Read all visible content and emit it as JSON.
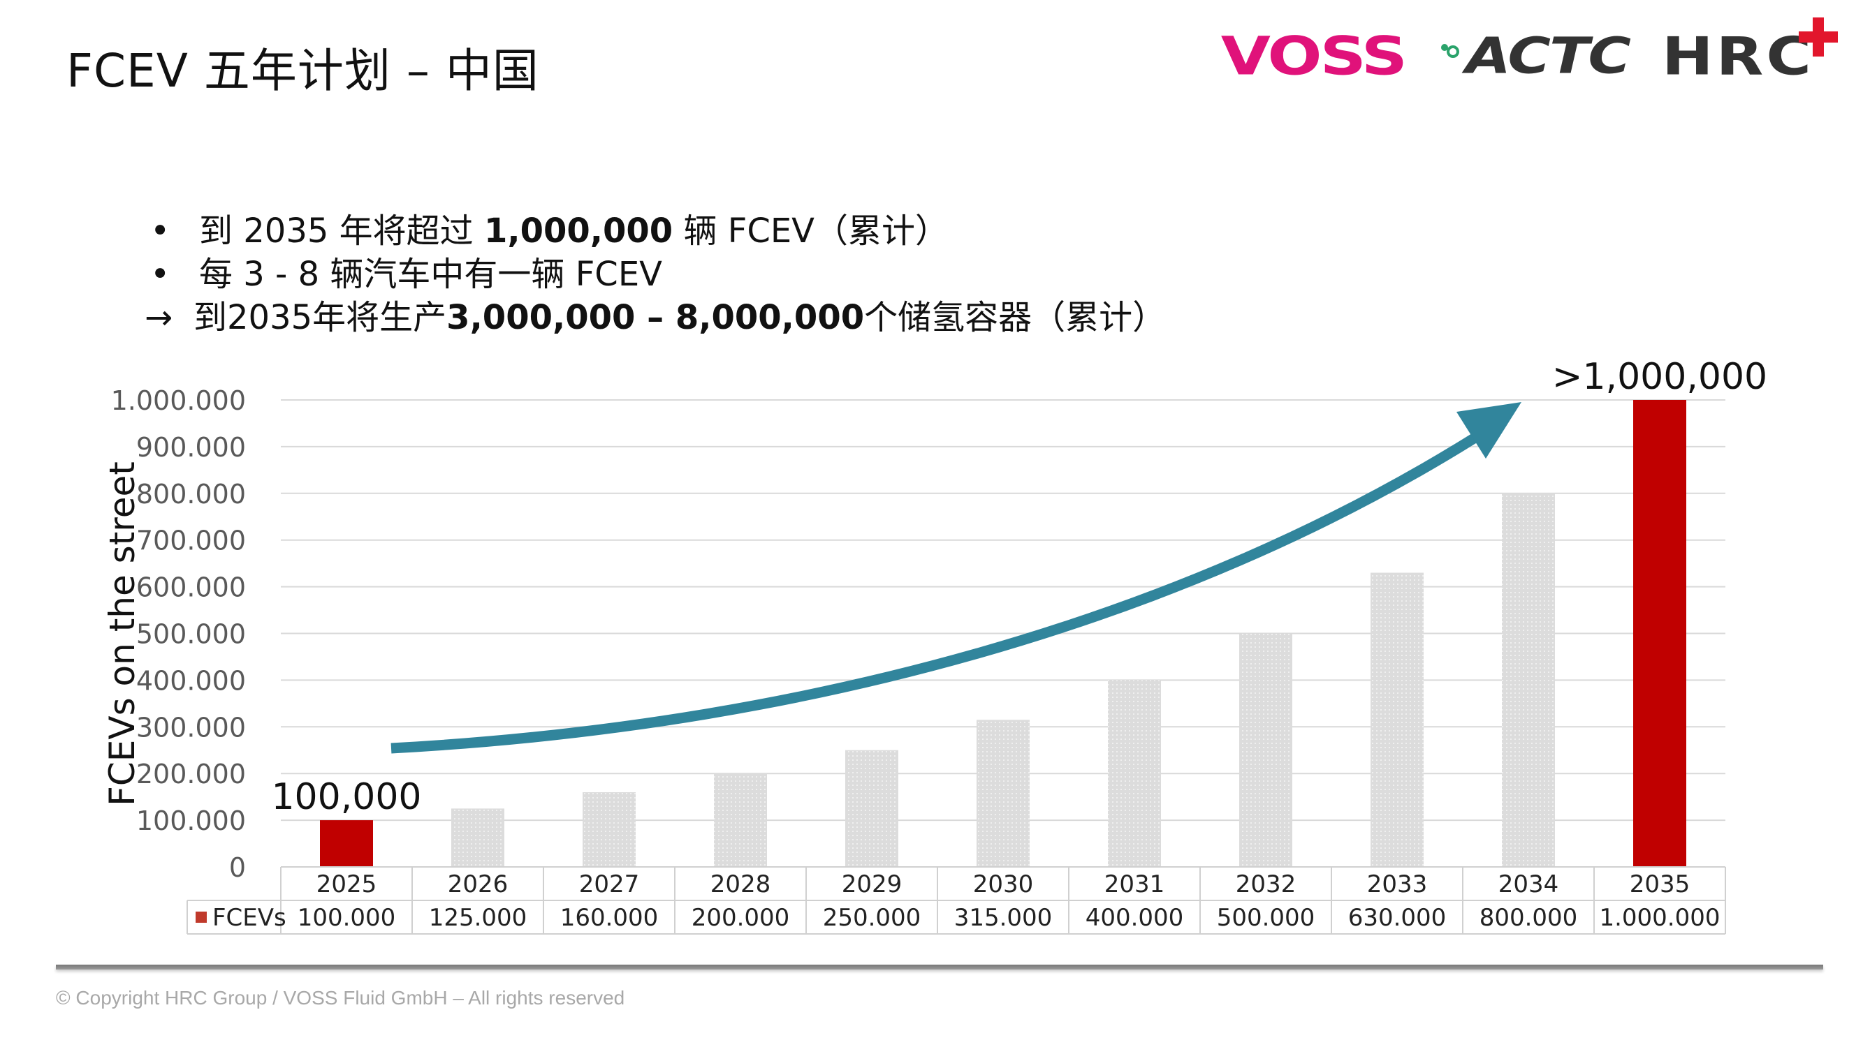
{
  "header": {
    "title": "FCEV 五年计划 – 中国"
  },
  "logos": {
    "voss": "VOSS",
    "actc": "ACTC",
    "hrc": "HRC",
    "voss_color": "#e0127a",
    "hrc_cross_color": "#e2162c"
  },
  "bullets": {
    "line1": {
      "marker": "•",
      "pre": "到 2035 年将超过 ",
      "bold": "1,000,000",
      "post": " 辆 FCEV（累计）"
    },
    "line2": {
      "marker": "•",
      "text": "每 3 - 8 辆汽车中有一辆 FCEV"
    },
    "line3": {
      "marker": "→",
      "pre": "到2035年将生产",
      "bold": "3,000,000 – 8,000,000",
      "post": "个储氢容器（累计）"
    }
  },
  "chart_data": {
    "type": "bar",
    "title": "",
    "ylabel": "FCEVs on the street",
    "xlabel": "",
    "categories": [
      "2025",
      "2026",
      "2027",
      "2028",
      "2029",
      "2030",
      "2031",
      "2032",
      "2033",
      "2034",
      "2035"
    ],
    "series": [
      {
        "name": "FCEVs",
        "values": [
          100000,
          125000,
          160000,
          200000,
          250000,
          315000,
          400000,
          500000,
          630000,
          800000,
          1000000
        ],
        "table_labels": [
          "100.000",
          "125.000",
          "160.000",
          "200.000",
          "250.000",
          "315.000",
          "400.000",
          "500.000",
          "630.000",
          "800.000",
          "1.000.000"
        ]
      }
    ],
    "highlighted_categories": [
      "2025",
      "2035"
    ],
    "ylim": [
      0,
      1000000
    ],
    "yticks": [
      0,
      100000,
      200000,
      300000,
      400000,
      500000,
      600000,
      700000,
      800000,
      900000,
      1000000
    ],
    "ytick_labels": [
      "0",
      "100.000",
      "200.000",
      "300.000",
      "400.000",
      "500.000",
      "600.000",
      "700.000",
      "800.000",
      "900.000",
      "1.000.000"
    ],
    "grid": true,
    "data_table": true,
    "annotations": [
      {
        "category": "2025",
        "text": "100,000"
      },
      {
        "category": "2035",
        "text": ">1,000,000"
      }
    ],
    "trend_arrow": true,
    "colors": {
      "highlight": "#c00000",
      "regular": "#d9d9d9",
      "legend_key": "#c0392b",
      "arrow": "#31859c",
      "grid": "#d9d9d9"
    }
  },
  "footer": {
    "copyright": "© Copyright HRC Group / VOSS Fluid GmbH – All rights reserved"
  }
}
